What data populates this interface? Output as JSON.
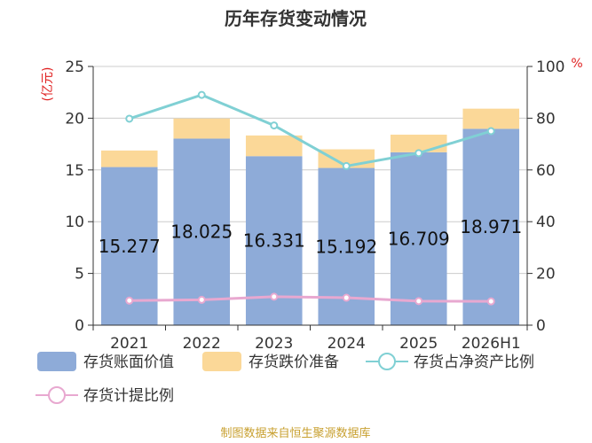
{
  "chart_data": {
    "type": "bar",
    "title": "历年存货变动情况",
    "categories": [
      "2021",
      "2022",
      "2023",
      "2024",
      "2025",
      "2026H1"
    ],
    "y_left": {
      "unit": "(亿元)",
      "lim": [
        0,
        25
      ],
      "ticks": [
        0,
        5,
        10,
        15,
        20,
        25
      ]
    },
    "y_right": {
      "unit": "%",
      "lim": [
        0,
        100
      ],
      "ticks": [
        0,
        20,
        40,
        60,
        80,
        100
      ]
    },
    "series": [
      {
        "name": "存货账面价值",
        "kind": "bar-stack",
        "axis": "left",
        "color": "#8eabd8",
        "values": [
          15.277,
          18.025,
          16.331,
          15.192,
          16.709,
          18.971
        ],
        "labels": [
          "15.277",
          "18.025",
          "16.331",
          "15.192",
          "16.709",
          "18.971"
        ]
      },
      {
        "name": "存货跌价准备",
        "kind": "bar-stack",
        "axis": "left",
        "color": "#fbd898",
        "values": [
          1.6,
          1.95,
          2.0,
          1.8,
          1.7,
          1.95
        ]
      },
      {
        "name": "存货占净资产比例",
        "kind": "line",
        "axis": "right",
        "color": "#80d0d4",
        "values": [
          79.8,
          89.0,
          77.2,
          61.5,
          66.5,
          75.0
        ]
      },
      {
        "name": "存货计提比例",
        "kind": "line",
        "axis": "right",
        "color": "#e8a8d0",
        "values": [
          9.5,
          9.8,
          11.0,
          10.6,
          9.3,
          9.2
        ]
      }
    ],
    "grid": true,
    "legend_position": "bottom"
  },
  "footer": {
    "source": "制图数据来自恒生聚源数据库"
  }
}
